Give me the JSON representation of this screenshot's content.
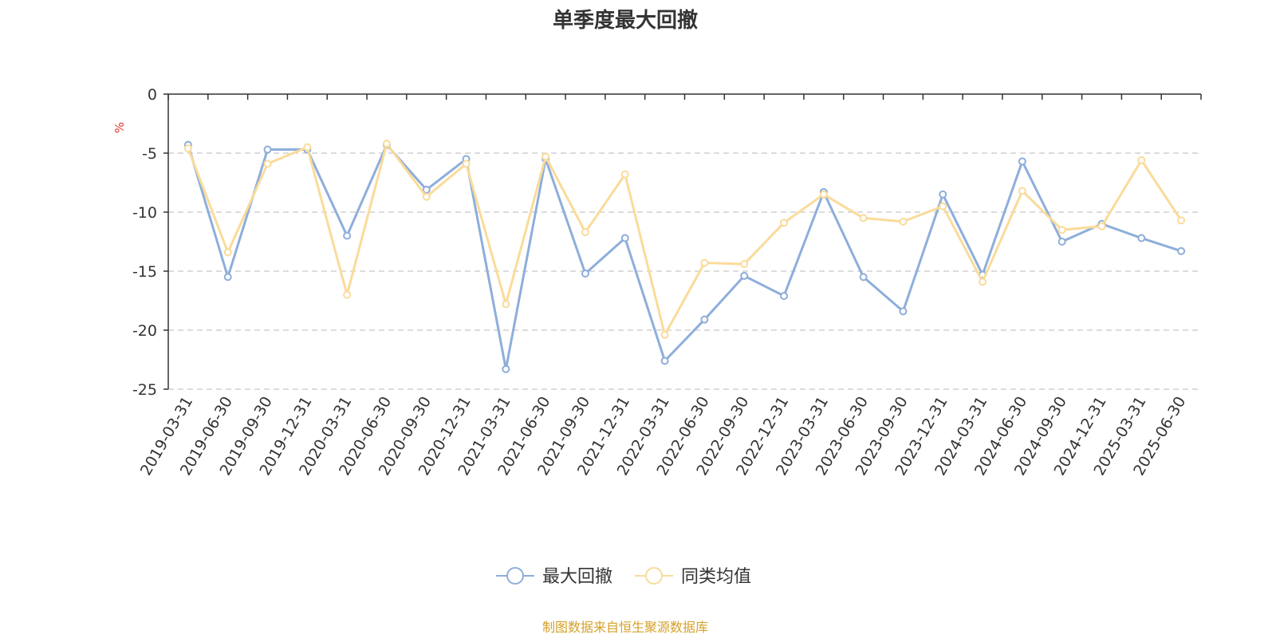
{
  "chart_data": {
    "type": "line",
    "title": "单季度最大回撤",
    "ylabel": "%",
    "ylim": [
      -25,
      0
    ],
    "yticks": [
      0,
      -5,
      -10,
      -15,
      -20,
      -25
    ],
    "grid": true,
    "legend_position": "bottom-center",
    "categories": [
      "2019-03-31",
      "2019-06-30",
      "2019-09-30",
      "2019-12-31",
      "2020-03-31",
      "2020-06-30",
      "2020-09-30",
      "2020-12-31",
      "2021-03-31",
      "2021-06-30",
      "2021-09-30",
      "2021-12-31",
      "2022-03-31",
      "2022-06-30",
      "2022-09-30",
      "2022-12-31",
      "2023-03-31",
      "2023-06-30",
      "2023-09-30",
      "2023-12-31",
      "2024-03-31",
      "2024-06-30",
      "2024-09-30",
      "2024-12-31",
      "2025-03-31",
      "2025-06-30"
    ],
    "series": [
      {
        "name": "最大回撤",
        "color": "#8eaedb",
        "values": [
          -4.3,
          -15.5,
          -4.7,
          -4.7,
          -12.0,
          -4.3,
          -8.1,
          -5.5,
          -23.3,
          -5.5,
          -15.2,
          -12.2,
          -22.6,
          -19.1,
          -15.4,
          -17.1,
          -8.3,
          -15.5,
          -18.4,
          -8.5,
          -15.3,
          -5.7,
          -12.5,
          -11.0,
          -12.2,
          -13.3
        ]
      },
      {
        "name": "同类均值",
        "color": "#fadb9a",
        "values": [
          -4.6,
          -13.4,
          -5.9,
          -4.5,
          -17.0,
          -4.2,
          -8.7,
          -5.9,
          -17.8,
          -5.3,
          -11.7,
          -6.8,
          -20.4,
          -14.3,
          -14.4,
          -10.9,
          -8.5,
          -10.5,
          -10.8,
          -9.5,
          -15.9,
          -8.2,
          -11.5,
          -11.2,
          -5.6,
          -10.7
        ]
      }
    ]
  },
  "footer": {
    "source": "制图数据来自恒生聚源数据库",
    "source_color": "#d4a12a"
  }
}
